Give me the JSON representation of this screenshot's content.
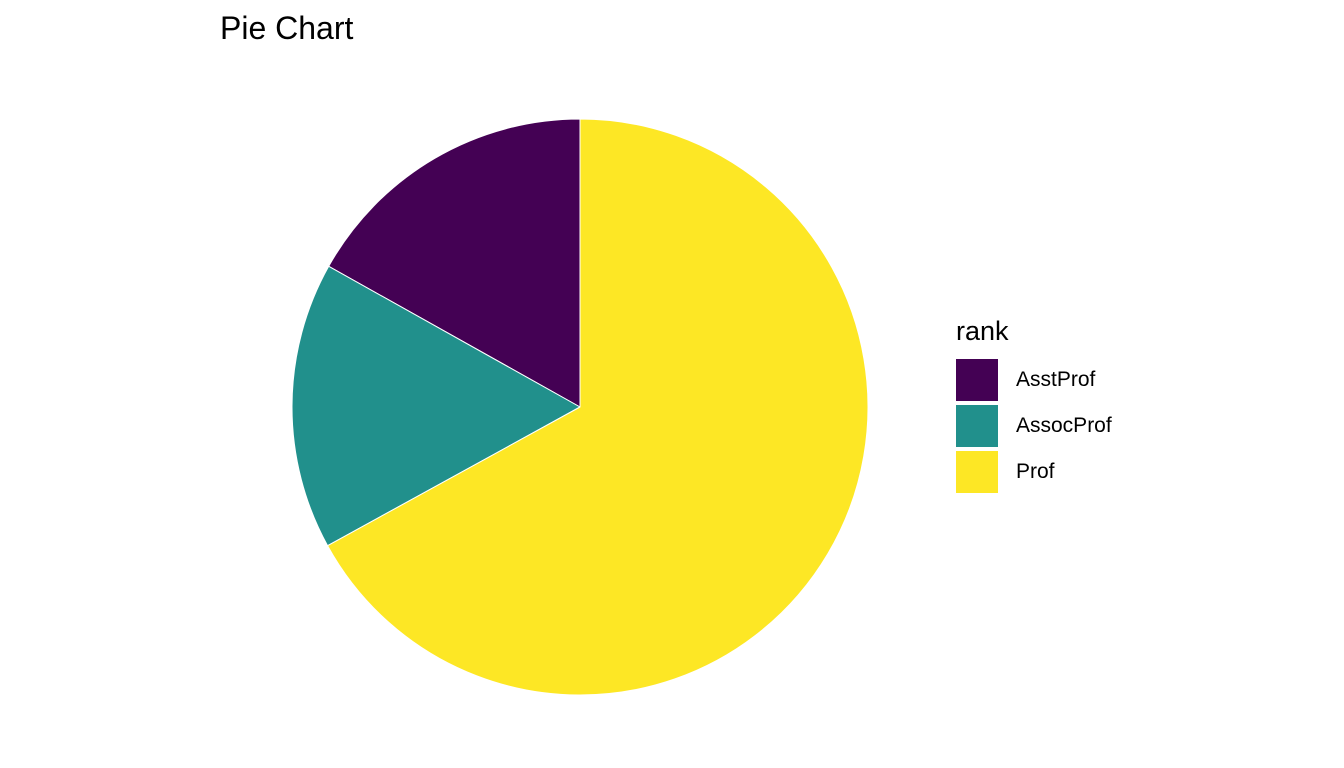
{
  "chart_data": {
    "type": "pie",
    "title": "Pie Chart",
    "legend_title": "rank",
    "legend_position": "right",
    "slices": [
      {
        "label": "AsstProf",
        "value": 67,
        "color": "#440154"
      },
      {
        "label": "AssocProf",
        "value": 64,
        "color": "#21908C"
      },
      {
        "label": "Prof",
        "value": 266,
        "color": "#FDE725"
      }
    ]
  }
}
